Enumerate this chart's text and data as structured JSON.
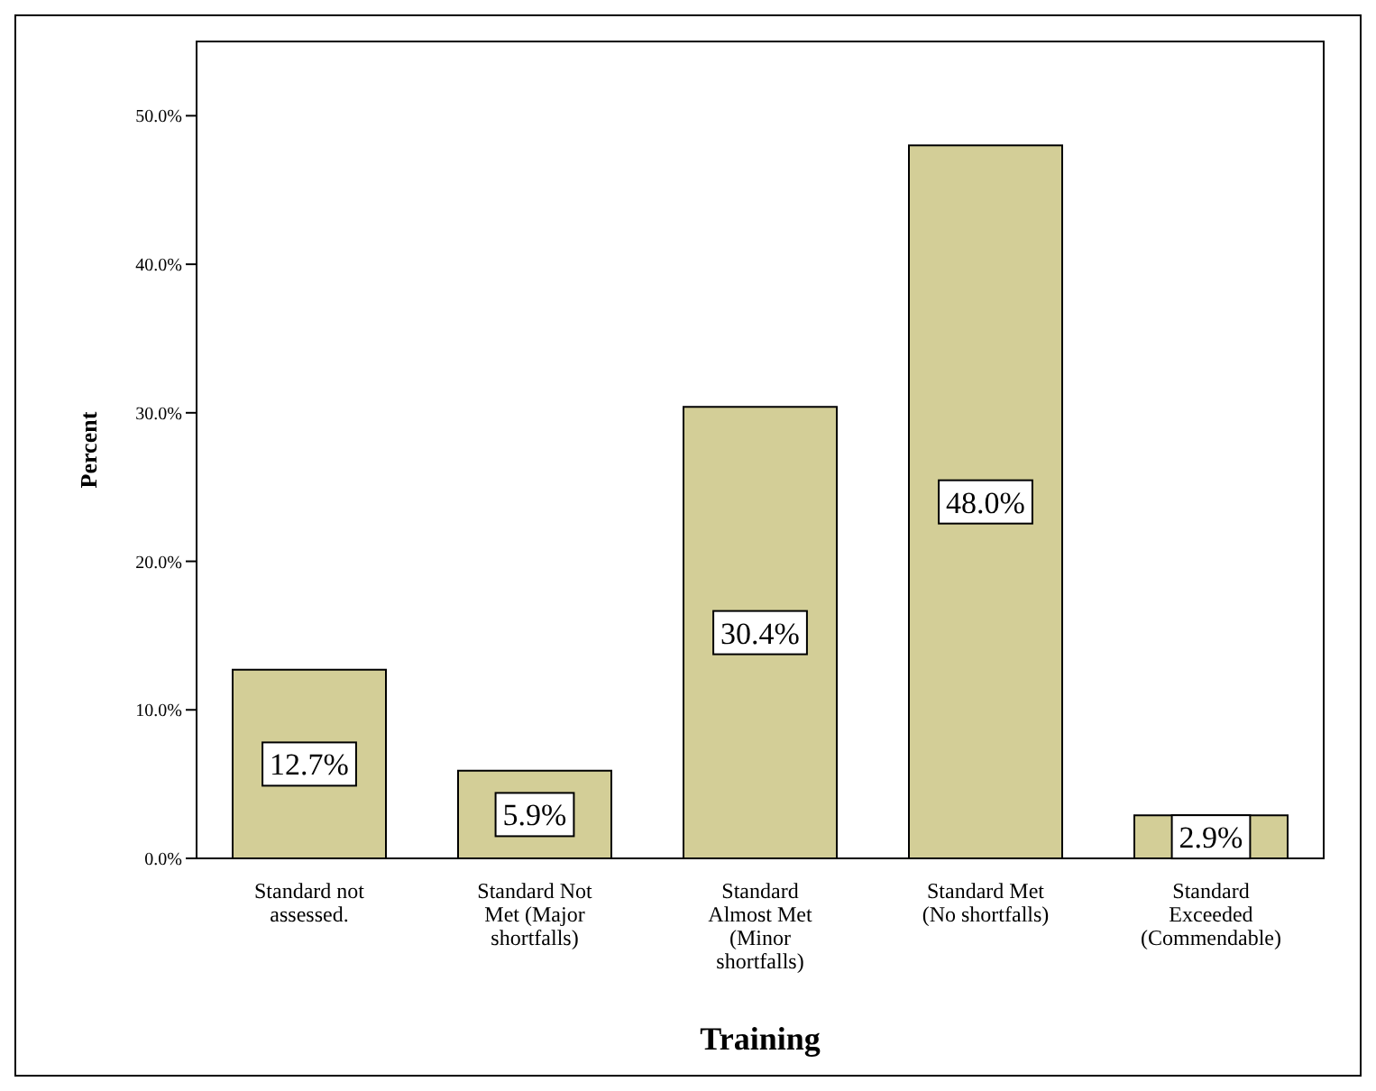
{
  "chart_data": {
    "type": "bar",
    "xlabel": "Training",
    "ylabel": "Percent",
    "categories": [
      "Standard not assessed.",
      "Standard Not Met (Major shortfalls)",
      "Standard Almost Met (Minor shortfalls)",
      "Standard Met (No shortfalls)",
      "Standard Exceeded (Commendable)"
    ],
    "values": [
      12.7,
      5.9,
      30.4,
      48.0,
      2.9
    ],
    "value_labels": [
      "12.7%",
      "5.9%",
      "30.4%",
      "48.0%",
      "2.9%"
    ],
    "color": "#d3ce97",
    "ylim": [
      0,
      55
    ],
    "yticks": [
      {
        "value": 0,
        "label": "0.0%"
      },
      {
        "value": 10,
        "label": "10.0%"
      },
      {
        "value": 20,
        "label": "20.0%"
      },
      {
        "value": 30,
        "label": "30.0%"
      },
      {
        "value": 40,
        "label": "40.0%"
      },
      {
        "value": 50,
        "label": "50.0%"
      }
    ],
    "grid": false,
    "legend": false
  }
}
